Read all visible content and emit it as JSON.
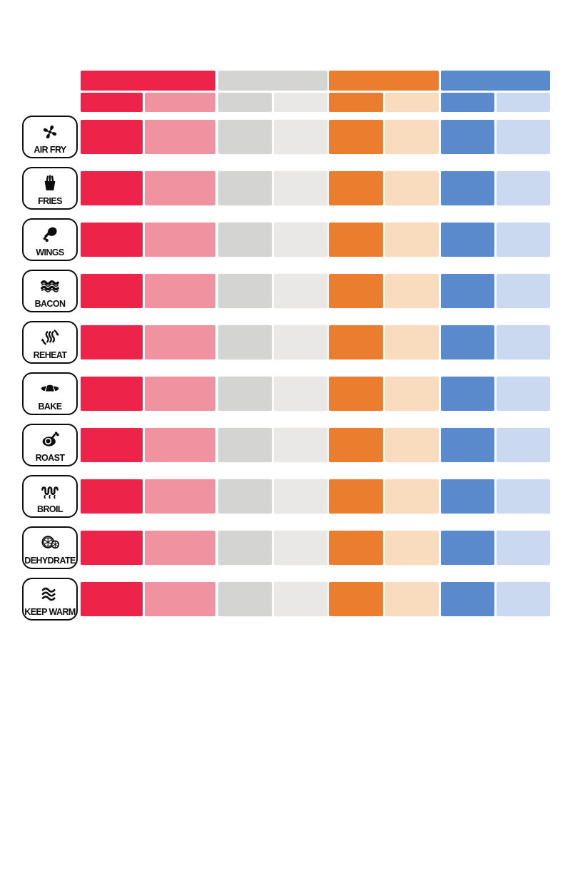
{
  "palette": {
    "red": "#EE2349",
    "pink": "#F092A0",
    "gray": "#D4D4D2",
    "light_gray": "#E9E8E6",
    "orange": "#EA7E2E",
    "peach": "#F8DCBD",
    "blue": "#5A8ACB",
    "light_blue": "#CBD9F0"
  },
  "header": {
    "group_color_keys": [
      "red",
      "gray",
      "orange",
      "blue"
    ],
    "subcolumn_color_keys": [
      "red",
      "pink",
      "gray",
      "light_gray",
      "orange",
      "peach",
      "blue",
      "light_blue"
    ]
  },
  "rows": [
    {
      "label": "AIR FRY",
      "icon": "fan-icon"
    },
    {
      "label": "FRIES",
      "icon": "fries-icon"
    },
    {
      "label": "WINGS",
      "icon": "drumstick-icon"
    },
    {
      "label": "BACON",
      "icon": "bacon-icon"
    },
    {
      "label": "REHEAT",
      "icon": "reheat-icon"
    },
    {
      "label": "BAKE",
      "icon": "croissant-icon"
    },
    {
      "label": "ROAST",
      "icon": "roast-turkey-icon"
    },
    {
      "label": "BROIL",
      "icon": "broil-coil-icon"
    },
    {
      "label": "DEHYDRATE",
      "icon": "citrus-slices-icon"
    },
    {
      "label": "KEEP WARM",
      "icon": "steam-waves-icon"
    }
  ],
  "chart_data": {
    "type": "table",
    "title": "",
    "row_labels": [
      "AIR FRY",
      "FRIES",
      "WINGS",
      "BACON",
      "REHEAT",
      "BAKE",
      "ROAST",
      "BROIL",
      "DEHYDRATE",
      "KEEP WARM"
    ],
    "column_groups": [
      {
        "color": "#EE2349",
        "subcolumns": [
          "#EE2349",
          "#F092A0"
        ]
      },
      {
        "color": "#D4D4D2",
        "subcolumns": [
          "#D4D4D2",
          "#E9E8E6"
        ]
      },
      {
        "color": "#EA7E2E",
        "subcolumns": [
          "#EA7E2E",
          "#F8DCBD"
        ]
      },
      {
        "color": "#5A8ACB",
        "subcolumns": [
          "#5A8ACB",
          "#CBD9F0"
        ]
      }
    ],
    "cells_contain_text": false
  }
}
